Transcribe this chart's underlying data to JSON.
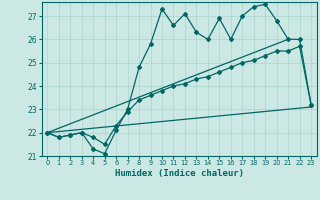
{
  "xlabel": "Humidex (Indice chaleur)",
  "bg_color": "#cce8e4",
  "line_color": "#006666",
  "grid_color": "#aad4cc",
  "xlim": [
    -0.5,
    23.5
  ],
  "ylim": [
    21.0,
    27.6
  ],
  "yticks": [
    21,
    22,
    23,
    24,
    25,
    26,
    27
  ],
  "xticks": [
    0,
    1,
    2,
    3,
    4,
    5,
    6,
    7,
    8,
    9,
    10,
    11,
    12,
    13,
    14,
    15,
    16,
    17,
    18,
    19,
    20,
    21,
    22,
    23
  ],
  "series_zigzag_x": [
    0,
    1,
    2,
    3,
    4,
    5,
    6,
    7,
    8,
    9,
    10,
    11,
    12,
    13,
    14,
    15,
    16,
    17,
    18,
    19,
    20,
    21,
    22,
    23
  ],
  "series_zigzag_y": [
    22.0,
    21.8,
    21.9,
    22.0,
    21.3,
    21.1,
    22.1,
    23.0,
    24.8,
    25.8,
    27.3,
    26.6,
    27.1,
    26.3,
    26.0,
    26.9,
    26.0,
    27.0,
    27.4,
    27.5,
    26.8,
    26.0,
    26.0,
    23.2
  ],
  "series_smooth_x": [
    0,
    1,
    2,
    3,
    4,
    5,
    6,
    7,
    8,
    9,
    10,
    11,
    12,
    13,
    14,
    15,
    16,
    17,
    18,
    19,
    20,
    21,
    22,
    23
  ],
  "series_smooth_y": [
    22.0,
    21.8,
    21.9,
    22.0,
    21.8,
    21.5,
    22.3,
    22.9,
    23.4,
    23.6,
    23.8,
    24.0,
    24.1,
    24.3,
    24.4,
    24.6,
    24.8,
    25.0,
    25.1,
    25.3,
    25.5,
    25.5,
    25.7,
    23.2
  ],
  "series_line1_x": [
    0,
    23
  ],
  "series_line1_y": [
    22.0,
    23.1
  ],
  "series_line2_x": [
    0,
    21
  ],
  "series_line2_y": [
    22.0,
    26.0
  ]
}
